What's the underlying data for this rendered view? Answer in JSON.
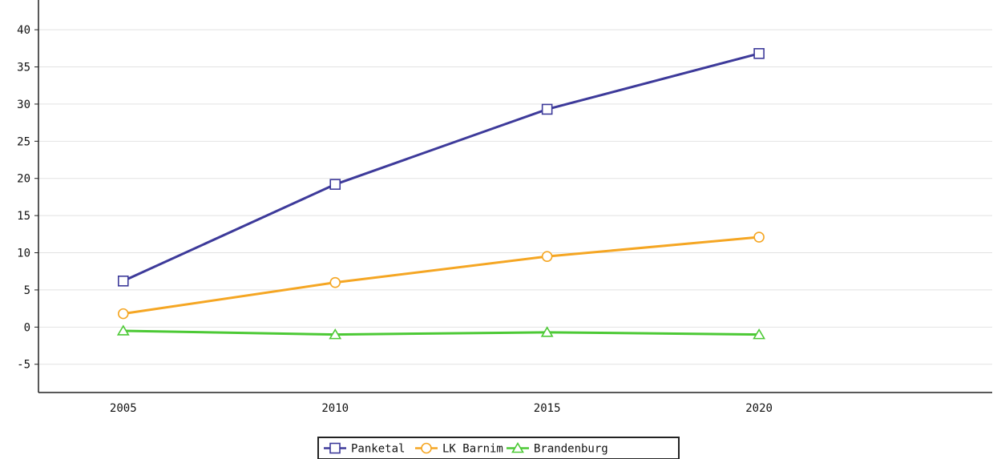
{
  "chart_data": {
    "type": "line",
    "title": "",
    "xlabel": "",
    "ylabel": "",
    "x": [
      2005,
      2010,
      2015,
      2020
    ],
    "xlim": [
      2003,
      2025.5
    ],
    "ylim": [
      -8.8,
      44
    ],
    "yticks": [
      -5,
      0,
      5,
      10,
      15,
      20,
      25,
      30,
      35,
      40
    ],
    "grid": true,
    "legend_position": "bottom",
    "series": [
      {
        "name": "Panketal",
        "values": [
          6.2,
          19.2,
          29.3,
          36.8
        ],
        "color": "#3d3a9a",
        "marker": "square"
      },
      {
        "name": "LK Barnim",
        "values": [
          1.8,
          6.0,
          9.5,
          12.1
        ],
        "color": "#f5a623",
        "marker": "circle"
      },
      {
        "name": "Brandenburg",
        "values": [
          -0.5,
          -1.0,
          -0.7,
          -1.0
        ],
        "color": "#4cc935",
        "marker": "triangle"
      }
    ]
  }
}
